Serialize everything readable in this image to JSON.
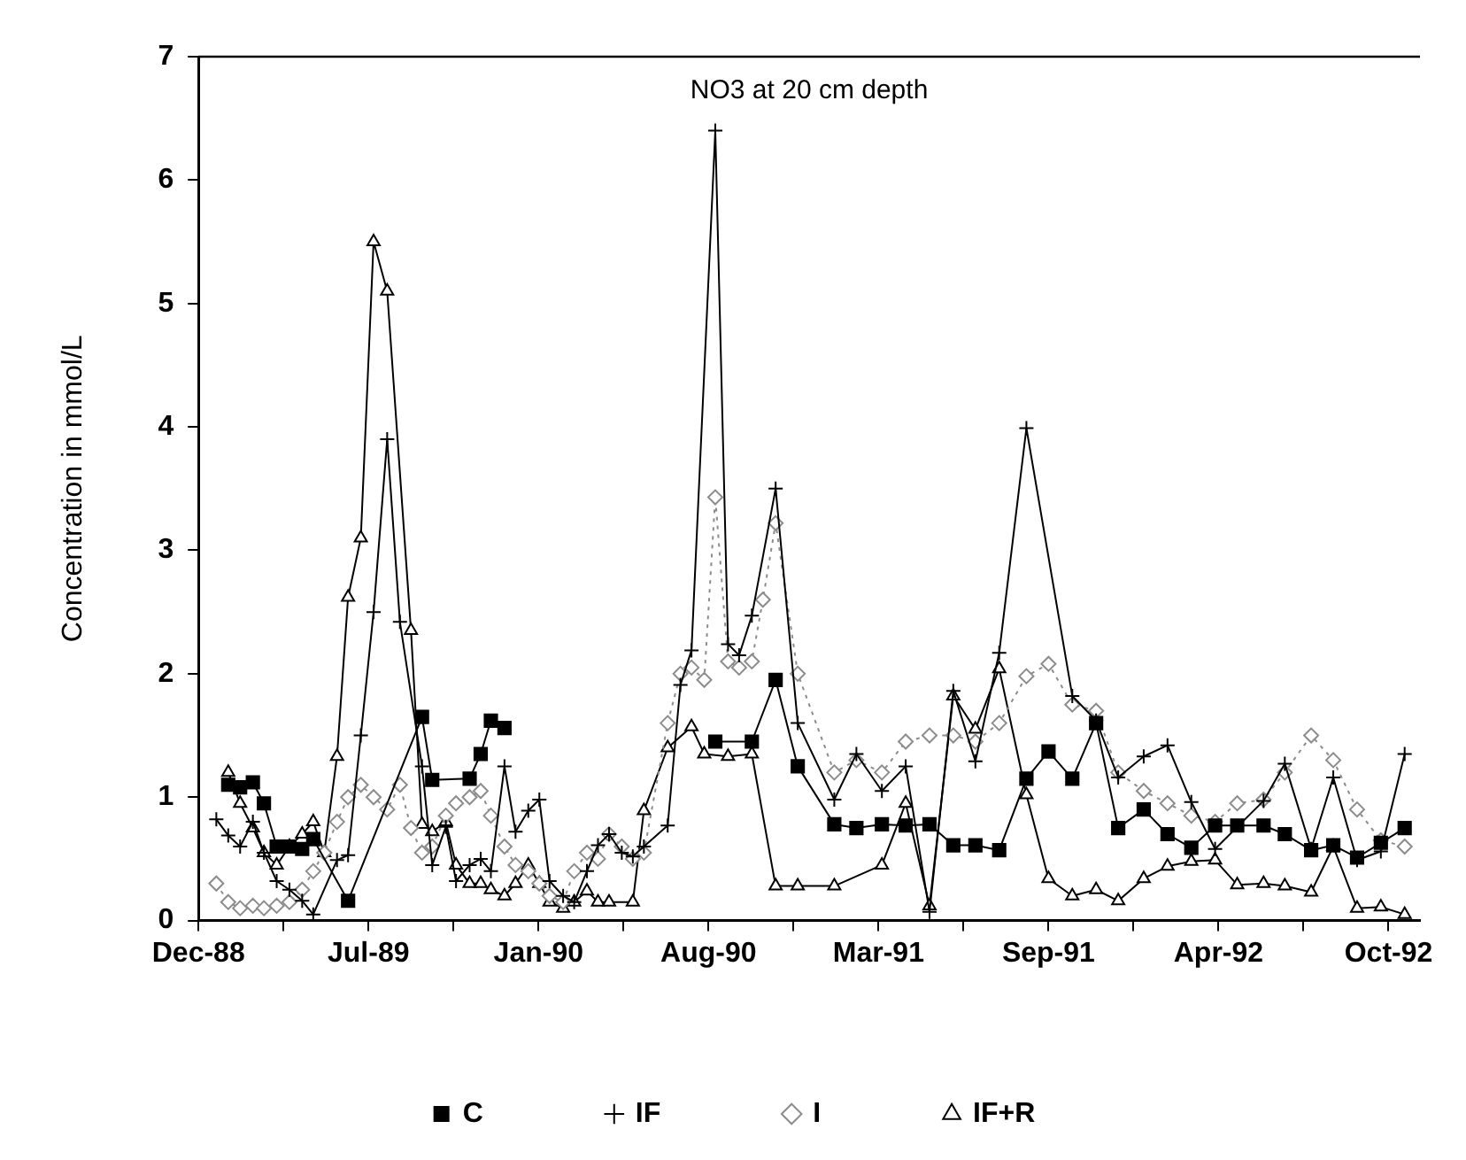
{
  "chart_data": {
    "type": "line",
    "title": "NO3 at 20 cm depth",
    "ylabel": "Concentration in mmol/L",
    "xlim": [
      "1988-12-25",
      "1992-12-01"
    ],
    "xticks": [
      {
        "value": "1988-12-25",
        "label": "Dec-88"
      },
      {
        "value": "1989-04-04",
        "label": null
      },
      {
        "value": "1989-07-13",
        "label": "Jul-89"
      },
      {
        "value": "1989-10-21",
        "label": null
      },
      {
        "value": "1990-01-29",
        "label": "Jan-90"
      },
      {
        "value": "1990-05-09",
        "label": null
      },
      {
        "value": "1990-08-17",
        "label": "Aug-90"
      },
      {
        "value": "1990-11-25",
        "label": null
      },
      {
        "value": "1991-03-05",
        "label": "Mar-91"
      },
      {
        "value": "1991-06-13",
        "label": null
      },
      {
        "value": "1991-09-21",
        "label": "Sep-91"
      },
      {
        "value": "1991-12-30",
        "label": null
      },
      {
        "value": "1992-04-08",
        "label": "Apr-92"
      },
      {
        "value": "1992-07-17",
        "label": null
      },
      {
        "value": "1992-10-25",
        "label": "Oct-92"
      }
    ],
    "ylim": [
      0,
      7
    ],
    "yticks": [
      0,
      1,
      2,
      3,
      4,
      5,
      6,
      7
    ],
    "grid": false,
    "legend": "bottom",
    "series": [
      {
        "name": "C",
        "color": "#000000",
        "marker": "square",
        "line_style": "solid",
        "x": [
          "1989-01-29",
          "1989-02-12",
          "1989-02-27",
          "1989-03-12",
          "1989-03-27",
          "1989-04-11",
          "1989-04-26",
          "1989-05-09",
          "1989-06-19",
          "1989-09-14",
          "1989-09-26",
          "1989-11-09",
          "1989-11-22",
          "1989-12-04",
          "1989-12-20",
          "1990-04-09",
          "1990-08-25",
          "1990-10-07",
          "1990-11-04",
          "1990-11-30",
          "1991-01-12",
          "1991-02-07",
          "1991-03-09",
          "1991-04-06",
          "1991-05-04",
          "1991-06-01",
          "1991-06-27",
          "1991-07-25",
          "1991-08-26",
          "1991-09-21",
          "1991-10-19",
          "1991-11-16",
          "1991-12-12",
          "1992-01-11",
          "1992-02-08",
          "1992-03-07",
          "1992-04-04",
          "1992-04-30",
          "1992-05-31",
          "1992-06-25",
          "1992-07-26",
          "1992-08-21",
          "1992-09-18",
          "1992-10-16",
          "1992-11-13"
        ],
        "values": [
          1.1,
          1.08,
          1.12,
          0.95,
          0.6,
          0.6,
          0.58,
          0.66,
          0.16,
          1.65,
          1.14,
          1.15,
          1.35,
          1.62,
          1.56,
          null,
          1.45,
          1.45,
          1.95,
          1.25,
          0.78,
          0.75,
          0.78,
          0.77,
          0.78,
          0.61,
          0.61,
          0.57,
          1.15,
          1.37,
          1.15,
          1.6,
          0.75,
          0.9,
          0.7,
          0.59,
          0.77,
          0.77,
          0.77,
          0.7,
          0.57,
          0.61,
          0.51,
          0.63,
          0.75
        ]
      },
      {
        "name": "IF",
        "color": "#000000",
        "marker": "cross",
        "line_style": "solid",
        "x": [
          "1989-01-15",
          "1989-01-29",
          "1989-02-12",
          "1989-02-27",
          "1989-03-12",
          "1989-03-27",
          "1989-04-11",
          "1989-04-26",
          "1989-05-09",
          "1989-06-06",
          "1989-06-19",
          "1989-07-04",
          "1989-07-19",
          "1989-08-04",
          "1989-08-19",
          "1989-09-14",
          "1989-09-26",
          "1989-10-12",
          "1989-10-24",
          "1989-11-09",
          "1989-11-22",
          "1989-12-04",
          "1989-12-20",
          "1990-01-02",
          "1990-01-17",
          "1990-01-30",
          "1990-02-11",
          "1990-02-27",
          "1990-03-12",
          "1990-03-27",
          "1990-04-09",
          "1990-04-22",
          "1990-05-07",
          "1990-05-20",
          "1990-06-02",
          "1990-06-30",
          "1990-07-15",
          "1990-07-28",
          "1990-08-25",
          "1990-09-09",
          "1990-09-22",
          "1990-10-07",
          "1990-11-04",
          "1990-11-30",
          "1991-01-12",
          "1991-02-07",
          "1991-03-09",
          "1991-04-06",
          "1991-05-04",
          "1991-06-01",
          "1991-06-27",
          "1991-07-25",
          "1991-08-26",
          "1991-10-19",
          "1991-11-16",
          "1991-12-12",
          "1992-01-11",
          "1992-02-08",
          "1992-03-07",
          "1992-04-04",
          "1992-05-31",
          "1992-06-25",
          "1992-07-26",
          "1992-08-21",
          "1992-09-18",
          "1992-10-16",
          "1992-11-13"
        ],
        "values": [
          0.82,
          0.69,
          0.6,
          0.8,
          0.55,
          0.32,
          0.25,
          0.16,
          0.05,
          0.49,
          0.53,
          1.5,
          2.5,
          3.9,
          2.42,
          1.25,
          0.45,
          0.76,
          0.32,
          0.45,
          0.5,
          0.4,
          1.25,
          0.72,
          0.89,
          0.98,
          0.32,
          0.2,
          0.15,
          0.4,
          0.61,
          0.7,
          0.55,
          0.52,
          0.6,
          0.77,
          1.91,
          2.19,
          6.4,
          2.24,
          2.15,
          2.47,
          3.5,
          1.6,
          0.98,
          1.35,
          1.05,
          1.25,
          0.07,
          1.86,
          1.29,
          2.17,
          3.99,
          1.82,
          1.62,
          1.16,
          1.33,
          1.42,
          0.96,
          0.58,
          0.97,
          1.27,
          0.58,
          1.16,
          0.49,
          0.56,
          1.35
        ]
      },
      {
        "name": "I",
        "color": "#8c8c8c",
        "marker": "diamond",
        "line_style": "dotted",
        "x": [
          "1989-01-15",
          "1989-01-29",
          "1989-02-12",
          "1989-02-27",
          "1989-03-12",
          "1989-03-27",
          "1989-04-11",
          "1989-04-26",
          "1989-05-09",
          "1989-05-22",
          "1989-06-06",
          "1989-06-19",
          "1989-07-04",
          "1989-07-19",
          "1989-08-04",
          "1989-08-19",
          "1989-09-01",
          "1989-09-14",
          "1989-09-26",
          "1989-10-12",
          "1989-10-24",
          "1989-11-09",
          "1989-11-22",
          "1989-12-04",
          "1989-12-20",
          "1990-01-02",
          "1990-01-17",
          "1990-01-30",
          "1990-02-11",
          "1990-02-27",
          "1990-03-12",
          "1990-03-27",
          "1990-04-09",
          "1990-04-22",
          "1990-05-07",
          "1990-05-20",
          "1990-06-02",
          "1990-06-30",
          "1990-07-15",
          "1990-07-28",
          "1990-08-12",
          "1990-08-25",
          "1990-09-09",
          "1990-09-22",
          "1990-10-07",
          "1990-10-20",
          "1990-11-04",
          "1990-11-30",
          "1991-01-12",
          "1991-02-07",
          "1991-03-09",
          "1991-04-06",
          "1991-05-04",
          "1991-06-01",
          "1991-06-27",
          "1991-07-25",
          "1991-08-26",
          "1991-09-21",
          "1991-10-19",
          "1991-11-16",
          "1991-12-12",
          "1992-01-11",
          "1992-02-08",
          "1992-03-07",
          "1992-04-04",
          "1992-04-30",
          "1992-05-31",
          "1992-06-25",
          "1992-07-26",
          "1992-08-21",
          "1992-09-18",
          "1992-10-16",
          "1992-11-13"
        ],
        "values": [
          0.3,
          0.15,
          0.1,
          0.12,
          0.1,
          0.12,
          0.15,
          0.25,
          0.4,
          0.55,
          0.8,
          1.0,
          1.1,
          1.0,
          0.9,
          1.1,
          0.75,
          0.55,
          0.6,
          0.85,
          0.95,
          1.0,
          1.05,
          0.85,
          0.6,
          0.45,
          0.4,
          0.3,
          0.2,
          0.15,
          0.4,
          0.55,
          0.5,
          0.7,
          0.6,
          0.5,
          0.55,
          1.6,
          2.0,
          2.05,
          1.95,
          3.43,
          2.1,
          2.05,
          2.1,
          2.6,
          3.22,
          2.0,
          1.2,
          1.3,
          1.2,
          1.45,
          1.5,
          1.5,
          1.45,
          1.6,
          1.98,
          2.08,
          1.75,
          1.7,
          1.2,
          1.05,
          0.95,
          0.85,
          0.8,
          0.95,
          0.98,
          1.2,
          1.5,
          1.3,
          0.9,
          0.65,
          0.6
        ]
      },
      {
        "name": "IF+R",
        "color": "#000000",
        "marker": "triangle",
        "line_style": "solid",
        "x": [
          "1989-01-29",
          "1989-02-12",
          "1989-02-27",
          "1989-03-12",
          "1989-03-27",
          "1989-04-11",
          "1989-04-26",
          "1989-05-09",
          "1989-05-22",
          "1989-06-06",
          "1989-06-19",
          "1989-07-04",
          "1989-07-19",
          "1989-08-04",
          "1989-09-01",
          "1989-09-14",
          "1989-09-26",
          "1989-10-12",
          "1989-10-24",
          "1989-11-09",
          "1989-11-22",
          "1989-12-04",
          "1989-12-20",
          "1990-01-02",
          "1990-01-17",
          "1990-01-30",
          "1990-02-11",
          "1990-02-27",
          "1990-03-12",
          "1990-03-27",
          "1990-04-09",
          "1990-04-22",
          "1990-05-20",
          "1990-06-02",
          "1990-06-30",
          "1990-07-28",
          "1990-08-12",
          "1990-09-09",
          "1990-10-07",
          "1990-11-04",
          "1990-11-30",
          "1991-01-12",
          "1991-03-09",
          "1991-04-06",
          "1991-05-04",
          "1991-06-01",
          "1991-06-27",
          "1991-07-25",
          "1991-08-26",
          "1991-09-21",
          "1991-10-19",
          "1991-11-16",
          "1991-12-12",
          "1992-01-11",
          "1992-02-08",
          "1992-03-07",
          "1992-04-04",
          "1992-04-30",
          "1992-05-31",
          "1992-06-25",
          "1992-07-26",
          "1992-08-21",
          "1992-09-18",
          "1992-10-16",
          "1992-11-13"
        ],
        "values": [
          1.2,
          0.95,
          0.75,
          0.55,
          0.45,
          0.6,
          0.7,
          0.8,
          0.55,
          1.33,
          2.62,
          3.1,
          5.5,
          5.1,
          2.35,
          0.78,
          0.72,
          0.8,
          0.45,
          0.3,
          0.3,
          0.25,
          0.2,
          0.3,
          0.45,
          0.3,
          0.15,
          0.1,
          0.15,
          0.24,
          0.15,
          0.15,
          0.15,
          0.89,
          1.4,
          1.57,
          1.35,
          1.33,
          1.35,
          0.28,
          0.28,
          0.28,
          0.45,
          0.95,
          0.12,
          1.82,
          1.55,
          2.04,
          1.02,
          0.34,
          0.2,
          0.25,
          0.16,
          0.34,
          0.44,
          0.48,
          0.49,
          0.29,
          0.3,
          0.28,
          0.23,
          0.6,
          0.1,
          0.11,
          0.05
        ]
      }
    ]
  }
}
